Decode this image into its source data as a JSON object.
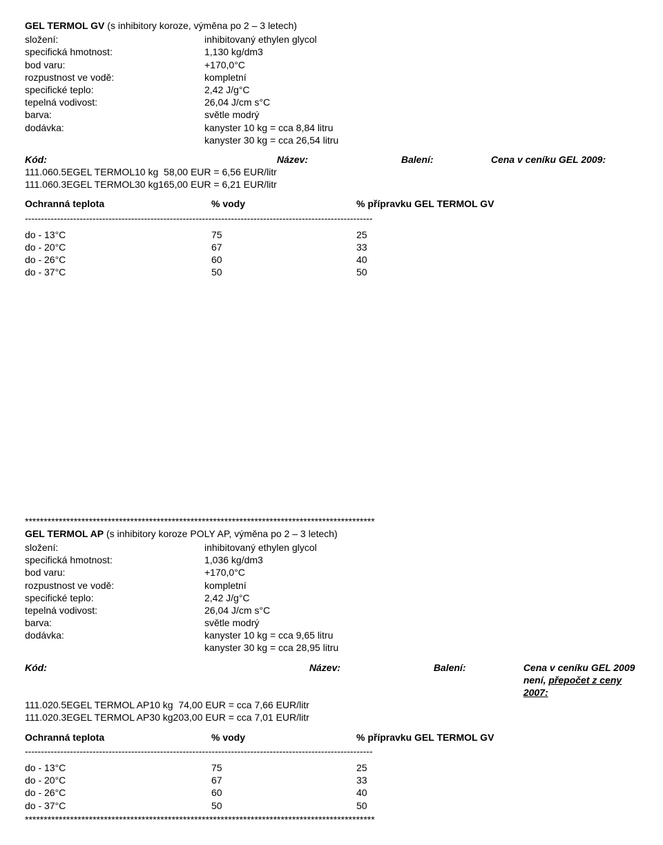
{
  "section1": {
    "title_bold": "GEL TERMOL GV",
    "title_rest": " (s inhibitory koroze, výměna po 2 – 3 letech)",
    "props": [
      {
        "label": "složení:",
        "value": "inhibitovaný ethylen glycol"
      },
      {
        "label": "specifická hmotnost:",
        "value": "1,130 kg/dm3"
      },
      {
        "label": "bod varu:",
        "value": "+170,0°C"
      },
      {
        "label": "rozpustnost ve vodě:",
        "value": "kompletní"
      },
      {
        "label": "specifické teplo:",
        "value": "2,42 J/g°C"
      },
      {
        "label": "tepelná vodivost:",
        "value": "26,04 J/cm s°C"
      },
      {
        "label": "barva:",
        "value": "světle modrý"
      },
      {
        "label": "dodávka:",
        "value": "kanyster 10 kg = cca  8,84 litru"
      },
      {
        "label": "",
        "value": "kanyster 30 kg = cca 26,54 litru"
      }
    ],
    "price_header": {
      "c1": "Kód:",
      "c2": "Název:",
      "c3": "Balení:",
      "c4": "Cena v ceníku GEL 2009:"
    },
    "price_rows": [
      {
        "c1": "111.060.5E",
        "c2": "GEL TERMOL",
        "c3": "10 kg",
        "c4": "  58,00 EUR = 6,56 EUR/litr"
      },
      {
        "c1": "111.060.3E",
        "c2": "GEL TERMOL",
        "c3": "30 kg",
        "c4": "165,00 EUR = 6,21 EUR/litr"
      }
    ],
    "pct_header": {
      "c1": "Ochranná teplota",
      "c2": "% vody",
      "c3": "% přípravku GEL TERMOL GV"
    },
    "dashline": "------------------------------------------------------------------------------------------------------------",
    "pct_rows": [
      {
        "c1": "do - 13°C",
        "c2": "75",
        "c3": "25"
      },
      {
        "c1": "do - 20°C",
        "c2": "67",
        "c3": "33"
      },
      {
        "c1": "do - 26°C",
        "c2": "60",
        "c3": "40"
      },
      {
        "c1": "do - 37°C",
        "c2": "50",
        "c3": "50"
      }
    ]
  },
  "starline": "*********************************************************************************************",
  "section2": {
    "title_bold": "GEL TERMOL AP",
    "title_rest": " (s inhibitory koroze POLY AP, výměna po 2 – 3 letech)",
    "props": [
      {
        "label": "složení:",
        "value": "inhibitovaný ethylen glycol"
      },
      {
        "label": "specifická hmotnost:",
        "value": "1,036 kg/dm3"
      },
      {
        "label": "bod varu:",
        "value": "+170,0°C"
      },
      {
        "label": "rozpustnost ve vodě:",
        "value": "kompletní"
      },
      {
        "label": "specifické teplo:",
        "value": "2,42 J/g°C"
      },
      {
        "label": "tepelná vodivost:",
        "value": "26,04 J/cm s°C"
      },
      {
        "label": "barva:",
        "value": "světle modrý"
      },
      {
        "label": "dodávka:",
        "value": "kanyster 10 kg = cca  9,65 litru"
      },
      {
        "label": "",
        "value": "kanyster 30 kg = cca 28,95 litru"
      }
    ],
    "price_header": {
      "c1": "Kód:",
      "c2": "Název:",
      "c3": "Balení:",
      "c4a": "Cena v ceníku GEL 2009 není, ",
      "c4b": "přepočet z ceny 2007:"
    },
    "price_rows": [
      {
        "c1": "111.020.5E",
        "c2": "GEL TERMOL AP",
        "c3": "10 kg",
        "c4": "  74,00 EUR = cca 7,66 EUR/litr"
      },
      {
        "c1": "111.020.3E",
        "c2": "GEL TERMOL AP",
        "c3": "30 kg",
        "c4": "203,00 EUR = cca 7,01 EUR/litr"
      }
    ],
    "pct_header": {
      "c1": "Ochranná teplota",
      "c2": "% vody",
      "c3": "% přípravku GEL TERMOL GV"
    },
    "dashline": "------------------------------------------------------------------------------------------------------------",
    "pct_rows": [
      {
        "c1": "do - 13°C",
        "c2": "75",
        "c3": "25"
      },
      {
        "c1": "do - 20°C",
        "c2": "67",
        "c3": "33"
      },
      {
        "c1": "do - 26°C",
        "c2": "60",
        "c3": "40"
      },
      {
        "c1": "do - 37°C",
        "c2": "50",
        "c3": "50"
      }
    ]
  }
}
